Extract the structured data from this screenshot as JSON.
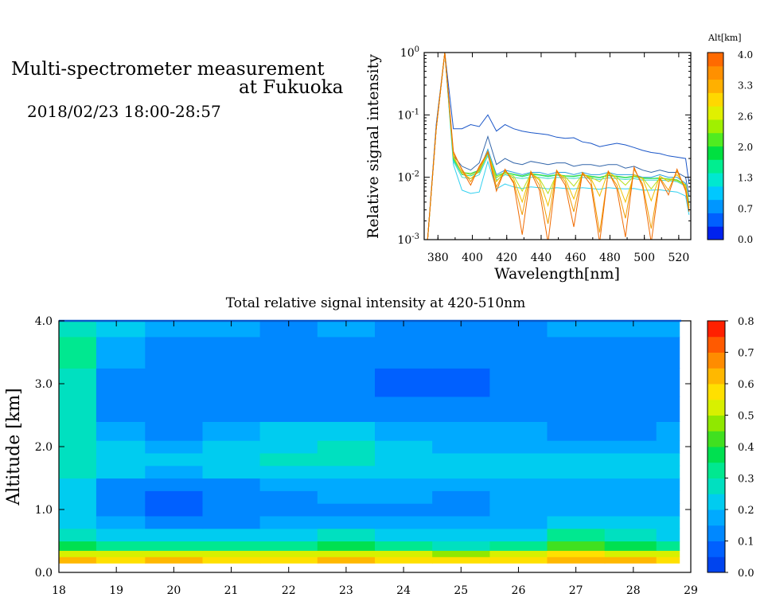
{
  "header": {
    "title_line1": "Multi-spectrometer measurement",
    "title_line2": "at Fukuoka",
    "date_range": "2018/02/23 18:00-28:57"
  },
  "chart_data": [
    {
      "type": "line",
      "ylabel": "Relative signal intensity",
      "xlabel": "Wavelength[nm]",
      "xlim": [
        372,
        527
      ],
      "ylim": [
        0.001,
        1
      ],
      "yscale": "log",
      "xticks": [
        "380",
        "400",
        "420",
        "440",
        "460",
        "480",
        "500",
        "520"
      ],
      "yticks": [
        "10-3",
        "10-2",
        "10-1",
        "100"
      ],
      "x": [
        374,
        379,
        384,
        389,
        394,
        399,
        404,
        409,
        414,
        419,
        424,
        429,
        434,
        439,
        444,
        449,
        454,
        459,
        464,
        469,
        474,
        479,
        484,
        489,
        494,
        499,
        504,
        509,
        514,
        519,
        524,
        526
      ],
      "colorbar": {
        "title": "Alt[km]",
        "ticks": [
          "4.0",
          "3.3",
          "2.6",
          "2.0",
          "1.3",
          "0.7",
          "0.0"
        ],
        "colors": [
          "#0022ee",
          "#0060ff",
          "#0096ff",
          "#00c8ff",
          "#00e8d0",
          "#00ee90",
          "#00e040",
          "#50ec20",
          "#a0f000",
          "#e0f000",
          "#ffd800",
          "#ffb000",
          "#ff9000",
          "#ff6a00"
        ]
      },
      "series": [
        {
          "color": "#1a56c8",
          "values": [
            0.001,
            0.07,
            1.0,
            0.06,
            0.06,
            0.07,
            0.065,
            0.1,
            0.055,
            0.07,
            0.06,
            0.055,
            0.052,
            0.05,
            0.048,
            0.044,
            0.042,
            0.043,
            0.037,
            0.035,
            0.031,
            0.033,
            0.035,
            0.033,
            0.03,
            0.027,
            0.025,
            0.024,
            0.022,
            0.021,
            0.02,
            0.008
          ]
        },
        {
          "color": "#3366aa",
          "values": [
            0.001,
            0.06,
            1.0,
            0.022,
            0.015,
            0.013,
            0.017,
            0.045,
            0.016,
            0.02,
            0.017,
            0.016,
            0.018,
            0.017,
            0.016,
            0.017,
            0.017,
            0.015,
            0.016,
            0.016,
            0.015,
            0.016,
            0.016,
            0.014,
            0.015,
            0.013,
            0.012,
            0.013,
            0.012,
            0.012,
            0.01,
            0.005
          ]
        },
        {
          "color": "#2aa0e0",
          "values": [
            0.001,
            0.06,
            1.0,
            0.02,
            0.012,
            0.011,
            0.013,
            0.028,
            0.011,
            0.013,
            0.012,
            0.011,
            0.012,
            0.012,
            0.011,
            0.012,
            0.012,
            0.011,
            0.012,
            0.011,
            0.011,
            0.012,
            0.011,
            0.011,
            0.011,
            0.01,
            0.01,
            0.011,
            0.01,
            0.01,
            0.008,
            0.004
          ]
        },
        {
          "color": "#40d8c8",
          "values": [
            0.001,
            0.06,
            1.0,
            0.018,
            0.01,
            0.0095,
            0.011,
            0.022,
            0.009,
            0.011,
            0.01,
            0.0095,
            0.01,
            0.01,
            0.0095,
            0.01,
            0.0098,
            0.0095,
            0.01,
            0.0095,
            0.0092,
            0.0098,
            0.0095,
            0.0092,
            0.0095,
            0.009,
            0.009,
            0.009,
            0.0088,
            0.0085,
            0.0072,
            0.0035
          ]
        },
        {
          "color": "#30d0f0",
          "values": [
            0.001,
            0.06,
            1.0,
            0.016,
            0.0062,
            0.0055,
            0.0058,
            0.018,
            0.0065,
            0.0078,
            0.007,
            0.0066,
            0.007,
            0.0068,
            0.0065,
            0.0068,
            0.0066,
            0.0065,
            0.0068,
            0.0066,
            0.0064,
            0.0068,
            0.0066,
            0.0065,
            0.0066,
            0.0062,
            0.0062,
            0.0063,
            0.006,
            0.0058,
            0.005,
            0.0025
          ]
        },
        {
          "color": "#20e090",
          "values": [
            0.001,
            0.06,
            1.0,
            0.019,
            0.011,
            0.0105,
            0.012,
            0.024,
            0.0098,
            0.012,
            0.011,
            0.0102,
            0.011,
            0.0108,
            0.0102,
            0.0108,
            0.0104,
            0.0102,
            0.0108,
            0.0102,
            0.0098,
            0.0106,
            0.0102,
            0.0098,
            0.0102,
            0.0096,
            0.0095,
            0.0096,
            0.0093,
            0.009,
            0.0075,
            0.0035
          ]
        },
        {
          "color": "#40e040",
          "values": [
            0.001,
            0.06,
            1.0,
            0.02,
            0.012,
            0.0115,
            0.013,
            0.025,
            0.0105,
            0.012,
            0.0112,
            0.0105,
            0.0115,
            0.011,
            0.0105,
            0.011,
            0.0106,
            0.0104,
            0.011,
            0.0104,
            0.01,
            0.0108,
            0.0104,
            0.01,
            0.0104,
            0.0098,
            0.0096,
            0.0098,
            0.0094,
            0.0091,
            0.0076,
            0.0036
          ]
        },
        {
          "color": "#b8e020",
          "values": [
            0.001,
            0.06,
            1.0,
            0.021,
            0.012,
            0.011,
            0.0125,
            0.025,
            0.01,
            0.0115,
            0.0105,
            0.006,
            0.0115,
            0.0095,
            0.0055,
            0.0112,
            0.0102,
            0.0072,
            0.011,
            0.01,
            0.0085,
            0.012,
            0.01,
            0.0075,
            0.0105,
            0.0098,
            0.0065,
            0.0098,
            0.0092,
            0.0088,
            0.0075,
            0.0035
          ]
        },
        {
          "color": "#f0c000",
          "values": [
            0.001,
            0.06,
            1.0,
            0.022,
            0.0115,
            0.0095,
            0.0125,
            0.026,
            0.0085,
            0.0125,
            0.0095,
            0.004,
            0.0115,
            0.009,
            0.0035,
            0.0125,
            0.0095,
            0.0045,
            0.0115,
            0.0095,
            0.005,
            0.0125,
            0.0092,
            0.004,
            0.011,
            0.0095,
            0.0042,
            0.0105,
            0.0085,
            0.011,
            0.0072,
            0.0032
          ]
        },
        {
          "color": "#f09a00",
          "values": [
            0.001,
            0.06,
            1.0,
            0.024,
            0.0135,
            0.0085,
            0.014,
            0.026,
            0.007,
            0.013,
            0.0085,
            0.0025,
            0.0125,
            0.0075,
            0.0018,
            0.013,
            0.0085,
            0.0028,
            0.012,
            0.0088,
            0.0013,
            0.012,
            0.0075,
            0.0022,
            0.0135,
            0.0078,
            0.0015,
            0.0098,
            0.0062,
            0.0125,
            0.0065,
            0.003
          ]
        },
        {
          "color": "#f06a00",
          "values": [
            0.001,
            0.06,
            1.0,
            0.026,
            0.013,
            0.0075,
            0.015,
            0.025,
            0.006,
            0.0135,
            0.008,
            0.0012,
            0.012,
            0.0062,
            0.0009,
            0.0125,
            0.0075,
            0.0016,
            0.0115,
            0.0075,
            0.0009,
            0.0125,
            0.0065,
            0.0011,
            0.0145,
            0.007,
            0.0009,
            0.0095,
            0.0052,
            0.0135,
            0.006,
            0.0028
          ]
        }
      ]
    },
    {
      "type": "heatmap",
      "title": "Total relative signal intensity at 420-510nm",
      "ylabel": "Altitude [km]",
      "xlabel": "",
      "xlim": [
        18,
        29
      ],
      "ylim": [
        0,
        4
      ],
      "xticks": [
        "18",
        "19",
        "20",
        "21",
        "22",
        "23",
        "24",
        "25",
        "26",
        "27",
        "28",
        "29"
      ],
      "yticks": [
        "0.0",
        "1.0",
        "2.0",
        "3.0",
        "4.0"
      ],
      "z_range": [
        0,
        0.8
      ],
      "colorbar": {
        "ticks": [
          "0.8",
          "0.7",
          "0.6",
          "0.5",
          "0.4",
          "0.3",
          "0.2",
          "0.1",
          "0.0"
        ],
        "colors": [
          "#0044ee",
          "#0060ff",
          "#0088ff",
          "#00aaff",
          "#00ccf0",
          "#00e0c0",
          "#00e890",
          "#00e050",
          "#40e020",
          "#90e800",
          "#d8f000",
          "#ffe000",
          "#ffb800",
          "#ff8c00",
          "#ff5a00",
          "#ff2000"
        ]
      },
      "altitudes_km": [
        0.2,
        0.3,
        0.4,
        0.6,
        0.8,
        1.0,
        1.2,
        1.4,
        1.6,
        1.8,
        2.0,
        2.2,
        2.6,
        3.0,
        3.5,
        4.0
      ],
      "hours": [
        18.3,
        19,
        20,
        21,
        22,
        23,
        24,
        25,
        26,
        27,
        28,
        28.8
      ],
      "values": [
        [
          0.62,
          0.6,
          0.62,
          0.6,
          0.6,
          0.62,
          0.6,
          0.55,
          0.6,
          0.62,
          0.62,
          0.6
        ],
        [
          0.52,
          0.5,
          0.52,
          0.5,
          0.5,
          0.52,
          0.5,
          0.45,
          0.5,
          0.55,
          0.52,
          0.5
        ],
        [
          0.36,
          0.34,
          0.34,
          0.32,
          0.32,
          0.36,
          0.32,
          0.3,
          0.34,
          0.42,
          0.36,
          0.34
        ],
        [
          0.28,
          0.24,
          0.22,
          0.2,
          0.2,
          0.26,
          0.22,
          0.2,
          0.22,
          0.32,
          0.26,
          0.24
        ],
        [
          0.24,
          0.16,
          0.12,
          0.14,
          0.16,
          0.18,
          0.17,
          0.17,
          0.18,
          0.24,
          0.2,
          0.2
        ],
        [
          0.22,
          0.12,
          0.08,
          0.1,
          0.14,
          0.15,
          0.15,
          0.15,
          0.16,
          0.18,
          0.18,
          0.18
        ],
        [
          0.2,
          0.1,
          0.08,
          0.1,
          0.14,
          0.16,
          0.16,
          0.15,
          0.16,
          0.17,
          0.17,
          0.18
        ],
        [
          0.22,
          0.14,
          0.12,
          0.13,
          0.17,
          0.19,
          0.18,
          0.17,
          0.18,
          0.18,
          0.18,
          0.19
        ],
        [
          0.25,
          0.2,
          0.18,
          0.2,
          0.22,
          0.24,
          0.22,
          0.2,
          0.2,
          0.2,
          0.2,
          0.21
        ],
        [
          0.28,
          0.22,
          0.2,
          0.22,
          0.25,
          0.27,
          0.24,
          0.21,
          0.21,
          0.2,
          0.2,
          0.21
        ],
        [
          0.3,
          0.2,
          0.18,
          0.2,
          0.24,
          0.26,
          0.22,
          0.19,
          0.19,
          0.18,
          0.18,
          0.19
        ],
        [
          0.3,
          0.18,
          0.15,
          0.16,
          0.2,
          0.2,
          0.18,
          0.16,
          0.16,
          0.15,
          0.15,
          0.16
        ],
        [
          0.28,
          0.14,
          0.12,
          0.12,
          0.12,
          0.12,
          0.11,
          0.1,
          0.11,
          0.11,
          0.11,
          0.12
        ],
        [
          0.3,
          0.12,
          0.11,
          0.11,
          0.1,
          0.1,
          0.09,
          0.09,
          0.1,
          0.1,
          0.1,
          0.11
        ],
        [
          0.32,
          0.16,
          0.12,
          0.14,
          0.12,
          0.13,
          0.12,
          0.12,
          0.12,
          0.14,
          0.13,
          0.14
        ],
        [
          0.3,
          0.2,
          0.16,
          0.17,
          0.15,
          0.16,
          0.15,
          0.14,
          0.15,
          0.18,
          0.16,
          0.16
        ]
      ]
    }
  ]
}
